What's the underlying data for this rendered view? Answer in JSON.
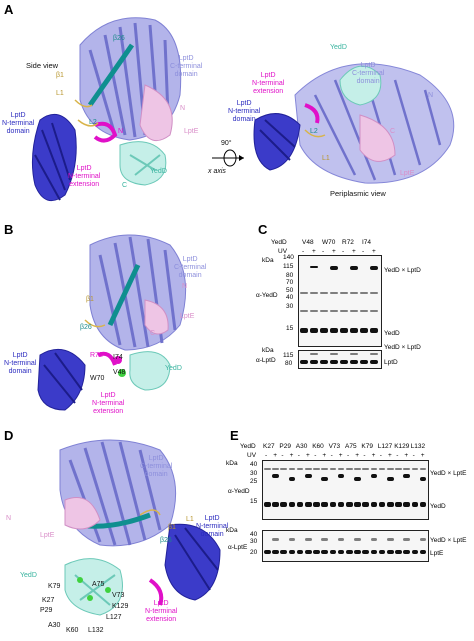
{
  "panels": {
    "A": {
      "letter": "A",
      "side_view": "Side view",
      "periplasmic_view": "Periplasmic view",
      "rotation": "90°",
      "axis": "x axis",
      "labels_left": {
        "b26": "β26",
        "b1": "β1",
        "l1": "L1",
        "l2": "L2",
        "n": "N",
        "c": "C",
        "n2": "N",
        "lptd_c": "LptD\nC-terminal\ndomain",
        "lptd_n": "LptD\nN-terminal\ndomain",
        "lpte": "LptE",
        "lptd_ext": "LptD\nN-terminal\nextension",
        "yedd": "YedD"
      },
      "labels_right": {
        "yedd": "YedD",
        "lptd_c": "LptD\nC-terminal\ndomain",
        "lptd_n": "LptD\nN-terminal\ndomain",
        "lptd_ext": "LptD\nN-terminal\nextension",
        "l2": "L2",
        "l1": "L1",
        "lpte": "LptE",
        "n": "N",
        "c": "C"
      }
    },
    "B": {
      "letter": "B",
      "labels": {
        "lptd_c": "LptD\nC-terminal\ndomain",
        "lpte": "LptE",
        "b1": "β1",
        "b26": "β26",
        "lptd_n": "LptD\nN-terminal\ndomain",
        "r72": "R72",
        "i74": "I74",
        "w70": "W70",
        "v48": "V48",
        "yedd": "YedD",
        "lptd_ext": "LptD\nN-terminal\nextension",
        "n": "N",
        "c": "C"
      }
    },
    "C": {
      "letter": "C",
      "yedd_label": "YedD",
      "uv_label": "UV",
      "lanes": [
        "V48",
        "W70",
        "R72",
        "I74"
      ],
      "uv": [
        "-",
        "+",
        "-",
        "+",
        "-",
        "+",
        "-",
        "+"
      ],
      "kda_label": "kDa",
      "top_markers": [
        "140",
        "115",
        "80",
        "70",
        "50",
        "40",
        "30",
        "15"
      ],
      "bottom_markers": [
        "115",
        "80"
      ],
      "alpha_yedd": "α-YedD",
      "alpha_lptd": "α-LptD",
      "right_labels": [
        "YedD × LptD",
        "YedD",
        "YedD × LptD",
        "LptD"
      ]
    },
    "D": {
      "letter": "D",
      "labels": {
        "lptd_c": "LptD\nC-terminal\ndomain",
        "lptd_n": "LptD\nN-terminal\ndomain",
        "lptd_ext": "LptD\nN-terminal\nextension",
        "lpte": "LptE",
        "yedd": "YedD",
        "b26": "β26",
        "b1": "β1",
        "l1": "L1",
        "n": "N",
        "residues": [
          "K79",
          "A75",
          "K27",
          "V73",
          "P29",
          "K129",
          "L127",
          "A30",
          "K60",
          "L132"
        ]
      }
    },
    "E": {
      "letter": "E",
      "yedd_label": "YedD",
      "uv_label": "UV",
      "lanes": [
        "K27",
        "P29",
        "A30",
        "K60",
        "V73",
        "A75",
        "K79",
        "L127",
        "K129",
        "L132"
      ],
      "uv": [
        "-",
        "+",
        "-",
        "+",
        "-",
        "+",
        "-",
        "+",
        "-",
        "+",
        "-",
        "+",
        "-",
        "+",
        "-",
        "+",
        "-",
        "+",
        "-",
        "+"
      ],
      "kda_label": "kDa",
      "top_markers": [
        "40",
        "30",
        "25",
        "15"
      ],
      "bottom_markers": [
        "40",
        "30",
        "20"
      ],
      "alpha_yedd": "α-YedD",
      "alpha_lpte": "α-LptE",
      "right_labels": [
        "YedD × LptE",
        "YedD",
        "YedD × LptE",
        "LptE"
      ]
    }
  },
  "colors": {
    "lptd_c": "#8d8fdc",
    "lptd_n": "#2b2bbf",
    "lptd_ext": "#e010c8",
    "yedd": "#9fe0d6",
    "lpte": "#e6b5dc",
    "b26": "#0f8f8f"
  }
}
